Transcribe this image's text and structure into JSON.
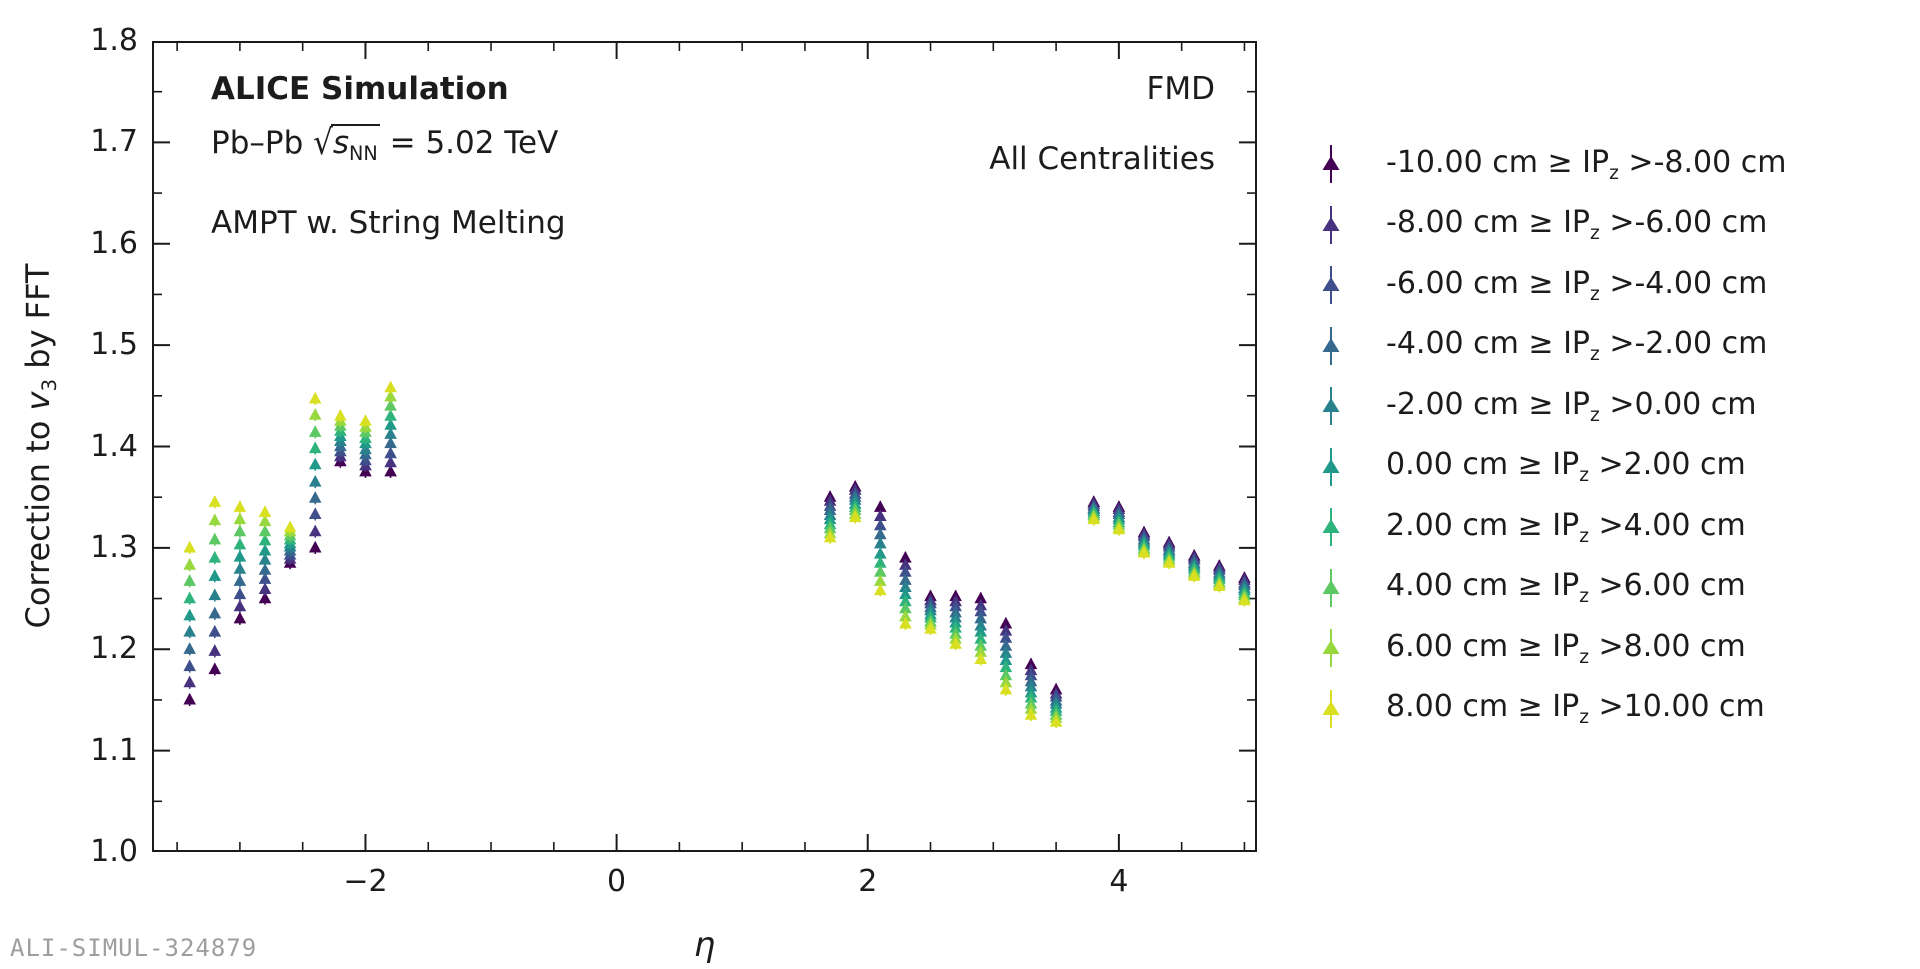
{
  "annotations": {
    "alice": "ALICE Simulation",
    "system_pre": "Pb–Pb ",
    "sqrt_sign": "√",
    "sqrt_s": "s",
    "sqrt_sub": "NN",
    "system_post": " = 5.02 TeV",
    "model": "AMPT w. String Melting",
    "detector": "FMD",
    "centrality": "All Centralities",
    "watermark": "ALI-SIMUL-324879"
  },
  "axes": {
    "ylabel_pre": "Correction to ",
    "ylabel_var": "v",
    "ylabel_sub": "3",
    "ylabel_post": " by FFT",
    "xlabel": "η",
    "x_ticks": [
      {
        "v": -2,
        "label": "−2"
      },
      {
        "v": 0,
        "label": "0"
      },
      {
        "v": 2,
        "label": "2"
      },
      {
        "v": 4,
        "label": "4"
      }
    ],
    "y_ticks": [
      {
        "v": 1.0,
        "label": "1.0"
      },
      {
        "v": 1.1,
        "label": "1.1"
      },
      {
        "v": 1.2,
        "label": "1.2"
      },
      {
        "v": 1.3,
        "label": "1.3"
      },
      {
        "v": 1.4,
        "label": "1.4"
      },
      {
        "v": 1.5,
        "label": "1.5"
      },
      {
        "v": 1.6,
        "label": "1.6"
      },
      {
        "v": 1.7,
        "label": "1.7"
      },
      {
        "v": 1.8,
        "label": "1.8"
      }
    ],
    "x_minor_step": 0.5,
    "y_minor_step": 0.05
  },
  "legend": {
    "items": [
      {
        "color": "#440154",
        "prefix": "-10.00 cm ≥ IP",
        "sub": "z",
        "suffix": " >-8.00 cm"
      },
      {
        "color": "#46327e",
        "prefix": "-8.00 cm ≥ IP",
        "sub": "z",
        "suffix": " >-6.00 cm"
      },
      {
        "color": "#3f4f8c",
        "prefix": "-6.00 cm ≥ IP",
        "sub": "z",
        "suffix": " >-4.00 cm"
      },
      {
        "color": "#35698d",
        "prefix": "-4.00 cm ≥ IP",
        "sub": "z",
        "suffix": " >-2.00 cm"
      },
      {
        "color": "#2a818e",
        "prefix": "-2.00 cm ≥ IP",
        "sub": "z",
        "suffix": " >0.00 cm"
      },
      {
        "color": "#21998a",
        "prefix": "0.00 cm ≥ IP",
        "sub": "z",
        "suffix": " >2.00 cm"
      },
      {
        "color": "#2eb37c",
        "prefix": "2.00 cm ≥ IP",
        "sub": "z",
        "suffix": " >4.00 cm"
      },
      {
        "color": "#5cc863",
        "prefix": "4.00 cm ≥ IP",
        "sub": "z",
        "suffix": " >6.00 cm"
      },
      {
        "color": "#97d83e",
        "prefix": "6.00 cm ≥ IP",
        "sub": "z",
        "suffix": " >8.00 cm"
      },
      {
        "color": "#d8e021",
        "prefix": "8.00 cm ≥ IP",
        "sub": "z",
        "suffix": " >10.00 cm"
      }
    ]
  },
  "chart_data": {
    "type": "scatter",
    "marker": "triangle-up",
    "title": "",
    "xlabel": "η",
    "ylabel": "Correction to v3 by FFT",
    "xlim": [
      -3.7,
      5.1
    ],
    "ylim": [
      1.0,
      1.8
    ],
    "legend_position": "right-outside",
    "grid": false,
    "series_names": [
      "-10.00 cm ≥ IPz >-8.00 cm",
      "-8.00 cm ≥ IPz >-6.00 cm",
      "-6.00 cm ≥ IPz >-4.00 cm",
      "-4.00 cm ≥ IPz >-2.00 cm",
      "-2.00 cm ≥ IPz >0.00 cm",
      "0.00 cm ≥ IPz >2.00 cm",
      "2.00 cm ≥ IPz >4.00 cm",
      "4.00 cm ≥ IPz >6.00 cm",
      "6.00 cm ≥ IPz >8.00 cm",
      "8.00 cm ≥ IPz >10.00 cm"
    ],
    "series_colors": [
      "#440154",
      "#46327e",
      "#3f4f8c",
      "#35698d",
      "#2a818e",
      "#21998a",
      "#2eb37c",
      "#5cc863",
      "#97d83e",
      "#d8e021"
    ],
    "y_error": 0.006,
    "clusters": [
      {
        "eta": -3.4,
        "values": [
          1.15,
          1.167,
          1.183,
          1.2,
          1.217,
          1.233,
          1.25,
          1.267,
          1.283,
          1.3
        ]
      },
      {
        "eta": -3.2,
        "values": [
          1.18,
          1.198,
          1.217,
          1.235,
          1.253,
          1.272,
          1.29,
          1.308,
          1.327,
          1.345
        ]
      },
      {
        "eta": -3.0,
        "values": [
          1.23,
          1.242,
          1.254,
          1.267,
          1.279,
          1.291,
          1.303,
          1.316,
          1.328,
          1.34
        ]
      },
      {
        "eta": -2.8,
        "values": [
          1.25,
          1.259,
          1.269,
          1.278,
          1.288,
          1.297,
          1.307,
          1.316,
          1.326,
          1.335
        ]
      },
      {
        "eta": -2.6,
        "values": [
          1.285,
          1.289,
          1.293,
          1.297,
          1.301,
          1.304,
          1.308,
          1.312,
          1.316,
          1.32
        ]
      },
      {
        "eta": -2.4,
        "values": [
          1.3,
          1.316,
          1.333,
          1.349,
          1.365,
          1.382,
          1.398,
          1.414,
          1.431,
          1.447
        ]
      },
      {
        "eta": -2.2,
        "values": [
          1.385,
          1.39,
          1.395,
          1.4,
          1.405,
          1.41,
          1.415,
          1.42,
          1.425,
          1.43
        ]
      },
      {
        "eta": -2.0,
        "values": [
          1.375,
          1.381,
          1.386,
          1.392,
          1.397,
          1.403,
          1.408,
          1.414,
          1.419,
          1.425
        ]
      },
      {
        "eta": -1.8,
        "values": [
          1.375,
          1.384,
          1.393,
          1.403,
          1.412,
          1.421,
          1.43,
          1.44,
          1.449,
          1.458
        ]
      },
      {
        "eta": 1.7,
        "values": [
          1.35,
          1.346,
          1.341,
          1.337,
          1.332,
          1.328,
          1.323,
          1.319,
          1.314,
          1.31
        ]
      },
      {
        "eta": 1.9,
        "values": [
          1.36,
          1.357,
          1.353,
          1.35,
          1.347,
          1.343,
          1.34,
          1.337,
          1.333,
          1.33
        ]
      },
      {
        "eta": 2.1,
        "values": [
          1.34,
          1.331,
          1.322,
          1.313,
          1.304,
          1.294,
          1.285,
          1.276,
          1.267,
          1.258
        ]
      },
      {
        "eta": 2.3,
        "values": [
          1.29,
          1.283,
          1.276,
          1.268,
          1.261,
          1.254,
          1.247,
          1.24,
          1.232,
          1.225
        ]
      },
      {
        "eta": 2.5,
        "values": [
          1.252,
          1.248,
          1.245,
          1.241,
          1.238,
          1.234,
          1.231,
          1.227,
          1.224,
          1.22
        ]
      },
      {
        "eta": 2.7,
        "values": [
          1.252,
          1.247,
          1.242,
          1.236,
          1.231,
          1.226,
          1.221,
          1.215,
          1.21,
          1.205
        ]
      },
      {
        "eta": 2.9,
        "values": [
          1.25,
          1.243,
          1.237,
          1.23,
          1.223,
          1.217,
          1.21,
          1.203,
          1.197,
          1.19
        ]
      },
      {
        "eta": 3.1,
        "values": [
          1.225,
          1.218,
          1.211,
          1.203,
          1.196,
          1.189,
          1.182,
          1.174,
          1.167,
          1.16
        ]
      },
      {
        "eta": 3.3,
        "values": [
          1.185,
          1.179,
          1.174,
          1.168,
          1.163,
          1.157,
          1.152,
          1.146,
          1.141,
          1.135
        ]
      },
      {
        "eta": 3.5,
        "values": [
          1.16,
          1.156,
          1.153,
          1.149,
          1.146,
          1.142,
          1.139,
          1.135,
          1.132,
          1.128
        ]
      },
      {
        "eta": 3.8,
        "values": [
          1.345,
          1.343,
          1.341,
          1.339,
          1.338,
          1.336,
          1.334,
          1.332,
          1.33,
          1.328
        ]
      },
      {
        "eta": 4.0,
        "values": [
          1.34,
          1.338,
          1.335,
          1.333,
          1.33,
          1.328,
          1.325,
          1.323,
          1.32,
          1.318
        ]
      },
      {
        "eta": 4.2,
        "values": [
          1.315,
          1.313,
          1.311,
          1.308,
          1.306,
          1.304,
          1.302,
          1.299,
          1.297,
          1.295
        ]
      },
      {
        "eta": 4.4,
        "values": [
          1.305,
          1.303,
          1.301,
          1.298,
          1.296,
          1.294,
          1.292,
          1.289,
          1.287,
          1.285
        ]
      },
      {
        "eta": 4.6,
        "values": [
          1.292,
          1.29,
          1.288,
          1.285,
          1.283,
          1.281,
          1.279,
          1.276,
          1.274,
          1.272
        ]
      },
      {
        "eta": 4.8,
        "values": [
          1.282,
          1.28,
          1.278,
          1.275,
          1.273,
          1.271,
          1.269,
          1.266,
          1.264,
          1.262
        ]
      },
      {
        "eta": 5.0,
        "values": [
          1.27,
          1.268,
          1.265,
          1.263,
          1.26,
          1.258,
          1.255,
          1.253,
          1.25,
          1.248
        ]
      }
    ]
  }
}
